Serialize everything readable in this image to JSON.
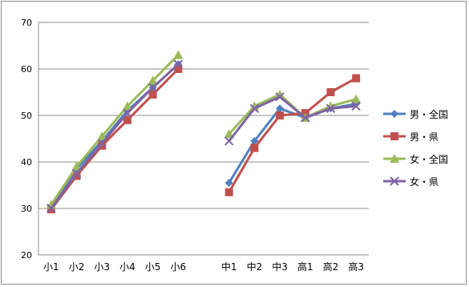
{
  "chart_data": {
    "type": "line",
    "categories": [
      "小1",
      "小2",
      "小3",
      "小4",
      "小5",
      "小6",
      "",
      "中1",
      "中2",
      "中3",
      "高1",
      "高2",
      "高3"
    ],
    "ylim": [
      20,
      70
    ],
    "yticks": [
      20,
      30,
      40,
      50,
      60,
      70
    ],
    "grid": true,
    "legend_position": "right",
    "series": [
      {
        "name": "男・全国",
        "color": "#4f81bd",
        "marker": "diamond",
        "values": [
          30.5,
          38.5,
          44.5,
          51,
          56,
          61,
          null,
          35.5,
          44.5,
          51.5,
          49.5,
          51.5,
          52.5
        ]
      },
      {
        "name": "男・県",
        "color": "#c0504d",
        "marker": "square",
        "values": [
          29.8,
          37,
          43.5,
          49,
          54.5,
          60,
          null,
          33.5,
          43,
          50,
          50.5,
          55,
          58
        ]
      },
      {
        "name": "女・全国",
        "color": "#9bbb59",
        "marker": "triangle",
        "values": [
          30.8,
          39,
          45.5,
          52,
          57.5,
          63,
          null,
          46,
          52,
          54.5,
          49.5,
          52,
          53.5
        ]
      },
      {
        "name": "女・県",
        "color": "#8064a2",
        "marker": "x",
        "values": [
          30,
          37.5,
          44,
          50.5,
          56,
          61,
          null,
          44.5,
          51.5,
          54,
          49.5,
          51.5,
          52
        ]
      }
    ]
  }
}
